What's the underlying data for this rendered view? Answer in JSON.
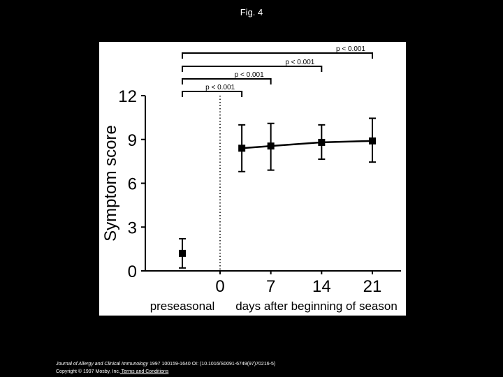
{
  "page": {
    "title": "Fig. 4"
  },
  "caption": {
    "journal": "Journal of Allergy and Clinical Immunology",
    "citation": " 1997 100159-1640 OI: (10.1016/S0091-6749(97)70216-5)",
    "copyright": "Copyright © 1997 Mosby, Inc.",
    "terms_link": " Terms and Conditions"
  },
  "chart_data": {
    "type": "scatter",
    "title": "",
    "xlabel": "days after beginning of season",
    "ylabel": "Symptom score",
    "ylim": [
      0,
      12
    ],
    "yticks": [
      0,
      3,
      6,
      9,
      12
    ],
    "xticks": [
      0,
      7,
      14,
      21
    ],
    "baseline_label": "preseasonal",
    "grid": false,
    "colors": {
      "marker": "#000000",
      "line": "#000000",
      "background": "#ffffff"
    },
    "preseasonal": {
      "mean": 1.2,
      "err_low": 0.2,
      "err_high": 2.2
    },
    "series": [
      {
        "x": [
          3,
          7,
          14,
          21
        ],
        "values": [
          8.4,
          8.55,
          8.8,
          8.9
        ],
        "err_low": [
          6.8,
          6.9,
          7.65,
          7.45
        ],
        "err_high": [
          10.0,
          10.1,
          10.0,
          10.45
        ]
      }
    ],
    "significance": [
      {
        "label": "p < 0.001",
        "to_x": 21
      },
      {
        "label": "p < 0.001",
        "to_x": 14
      },
      {
        "label": "p < 0.001",
        "to_x": 7
      },
      {
        "label": "p < 0.001",
        "to_x": 3
      }
    ]
  }
}
